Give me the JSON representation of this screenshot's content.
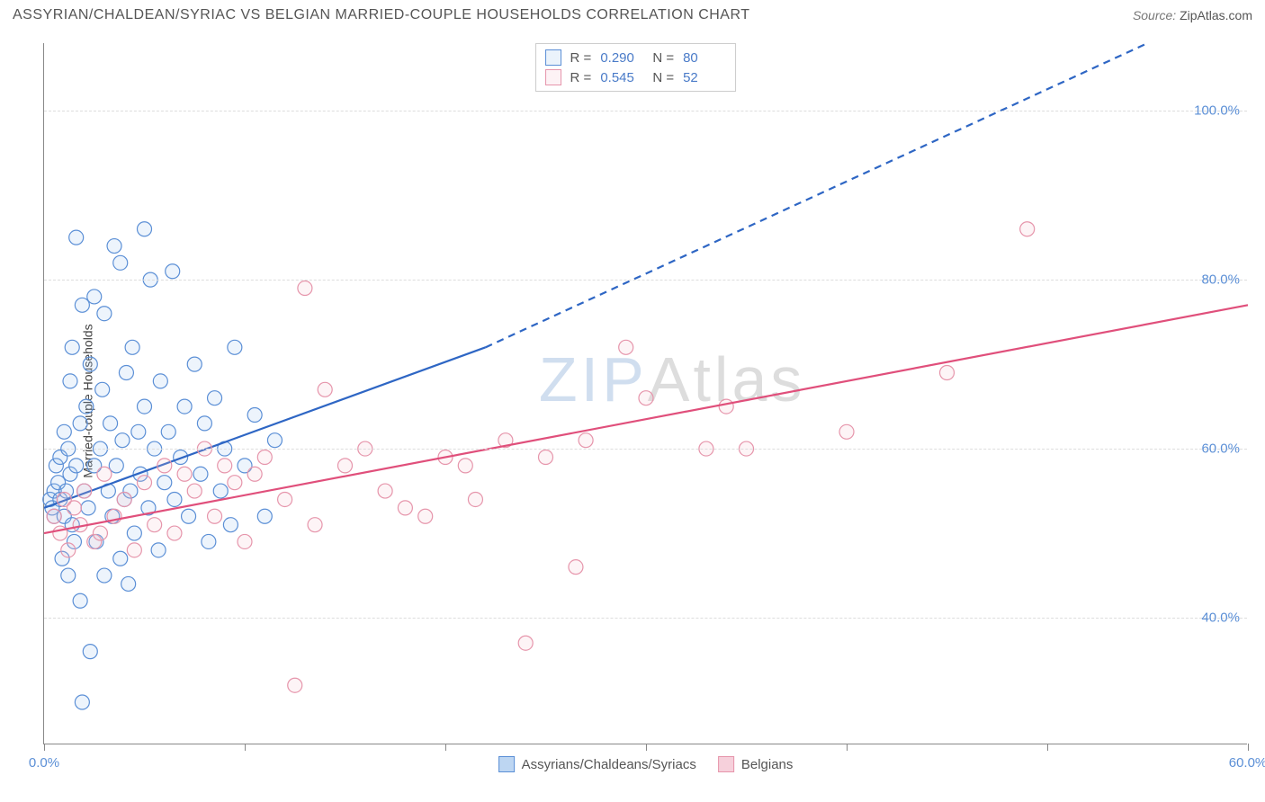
{
  "header": {
    "title": "ASSYRIAN/CHALDEAN/SYRIAC VS BELGIAN MARRIED-COUPLE HOUSEHOLDS CORRELATION CHART",
    "source_label": "Source:",
    "source_value": "ZipAtlas.com"
  },
  "chart": {
    "ylabel": "Married-couple Households",
    "xlim": [
      0,
      60
    ],
    "ylim": [
      25,
      108
    ],
    "xticks": [
      0,
      10,
      20,
      30,
      40,
      50,
      60
    ],
    "xtick_labels": {
      "0": "0.0%",
      "60": "60.0%"
    },
    "yticks": [
      40,
      60,
      80,
      100
    ],
    "ytick_labels": {
      "40": "40.0%",
      "60": "60.0%",
      "80": "80.0%",
      "100": "100.0%"
    },
    "grid_color": "#dddddd",
    "axis_color": "#888888",
    "background_color": "#ffffff",
    "label_color": "#5b8fd6",
    "point_radius": 8,
    "point_stroke_width": 1.2,
    "point_fill_opacity": 0.18,
    "line_width": 2.2,
    "series": [
      {
        "name": "Assyrians/Chaldeans/Syriacs",
        "color_stroke": "#5b8fd6",
        "color_fill": "#9dc1ec",
        "line_color": "#2e66c4",
        "R": "0.290",
        "N": "80",
        "regression": {
          "x1": 0,
          "y1": 53,
          "x2_solid": 22,
          "y2_solid": 72,
          "x2_dash": 55,
          "y2_dash": 108
        },
        "points": [
          [
            0.3,
            54
          ],
          [
            0.4,
            53
          ],
          [
            0.5,
            55
          ],
          [
            0.5,
            52
          ],
          [
            0.6,
            58
          ],
          [
            0.7,
            56
          ],
          [
            0.8,
            54
          ],
          [
            0.8,
            59
          ],
          [
            0.9,
            47
          ],
          [
            1.0,
            52
          ],
          [
            1.0,
            62
          ],
          [
            1.1,
            55
          ],
          [
            1.2,
            60
          ],
          [
            1.2,
            45
          ],
          [
            1.3,
            57
          ],
          [
            1.3,
            68
          ],
          [
            1.4,
            51
          ],
          [
            1.4,
            72
          ],
          [
            1.5,
            49
          ],
          [
            1.6,
            85
          ],
          [
            1.6,
            58
          ],
          [
            1.8,
            63
          ],
          [
            1.8,
            42
          ],
          [
            1.9,
            77
          ],
          [
            1.9,
            30
          ],
          [
            2.0,
            55
          ],
          [
            2.1,
            65
          ],
          [
            2.2,
            53
          ],
          [
            2.3,
            70
          ],
          [
            2.3,
            36
          ],
          [
            2.5,
            58
          ],
          [
            2.6,
            49
          ],
          [
            2.8,
            60
          ],
          [
            2.9,
            67
          ],
          [
            3.0,
            45
          ],
          [
            3.0,
            76
          ],
          [
            3.2,
            55
          ],
          [
            3.3,
            63
          ],
          [
            3.4,
            52
          ],
          [
            3.5,
            84
          ],
          [
            3.6,
            58
          ],
          [
            3.8,
            47
          ],
          [
            3.9,
            61
          ],
          [
            4.0,
            54
          ],
          [
            4.1,
            69
          ],
          [
            4.3,
            55
          ],
          [
            4.4,
            72
          ],
          [
            4.5,
            50
          ],
          [
            4.7,
            62
          ],
          [
            4.8,
            57
          ],
          [
            5.0,
            65
          ],
          [
            5.2,
            53
          ],
          [
            5.3,
            80
          ],
          [
            5.5,
            60
          ],
          [
            5.7,
            48
          ],
          [
            5.8,
            68
          ],
          [
            6.0,
            56
          ],
          [
            6.2,
            62
          ],
          [
            6.4,
            81
          ],
          [
            6.5,
            54
          ],
          [
            6.8,
            59
          ],
          [
            7.0,
            65
          ],
          [
            7.2,
            52
          ],
          [
            7.5,
            70
          ],
          [
            7.8,
            57
          ],
          [
            8.0,
            63
          ],
          [
            8.2,
            49
          ],
          [
            8.5,
            66
          ],
          [
            8.8,
            55
          ],
          [
            9.0,
            60
          ],
          [
            9.3,
            51
          ],
          [
            9.5,
            72
          ],
          [
            10.0,
            58
          ],
          [
            10.5,
            64
          ],
          [
            11.0,
            52
          ],
          [
            11.5,
            61
          ],
          [
            5.0,
            86
          ],
          [
            3.8,
            82
          ],
          [
            2.5,
            78
          ],
          [
            4.2,
            44
          ]
        ]
      },
      {
        "name": "Belgians",
        "color_stroke": "#e695ab",
        "color_fill": "#f4c0cf",
        "line_color": "#e04f7b",
        "R": "0.545",
        "N": "52",
        "regression": {
          "x1": 0,
          "y1": 50,
          "x2_solid": 60,
          "y2_solid": 77,
          "x2_dash": 60,
          "y2_dash": 77
        },
        "points": [
          [
            0.5,
            52
          ],
          [
            0.8,
            50
          ],
          [
            1.0,
            54
          ],
          [
            1.2,
            48
          ],
          [
            1.5,
            53
          ],
          [
            1.8,
            51
          ],
          [
            2.0,
            55
          ],
          [
            2.5,
            49
          ],
          [
            2.8,
            50
          ],
          [
            3.0,
            57
          ],
          [
            3.5,
            52
          ],
          [
            4.0,
            54
          ],
          [
            4.5,
            48
          ],
          [
            5.0,
            56
          ],
          [
            5.5,
            51
          ],
          [
            6.0,
            58
          ],
          [
            6.5,
            50
          ],
          [
            7.0,
            57
          ],
          [
            7.5,
            55
          ],
          [
            8.0,
            60
          ],
          [
            8.5,
            52
          ],
          [
            9.0,
            58
          ],
          [
            9.5,
            56
          ],
          [
            10.0,
            49
          ],
          [
            10.5,
            57
          ],
          [
            11.0,
            59
          ],
          [
            12.0,
            54
          ],
          [
            13.0,
            79
          ],
          [
            13.5,
            51
          ],
          [
            14.0,
            67
          ],
          [
            15.0,
            58
          ],
          [
            16.0,
            60
          ],
          [
            17.0,
            55
          ],
          [
            18.0,
            53
          ],
          [
            19.0,
            52
          ],
          [
            20.0,
            59
          ],
          [
            21.0,
            58
          ],
          [
            21.5,
            54
          ],
          [
            23.0,
            61
          ],
          [
            24.0,
            37
          ],
          [
            25.0,
            59
          ],
          [
            26.5,
            46
          ],
          [
            27.0,
            61
          ],
          [
            29.0,
            72
          ],
          [
            30.0,
            66
          ],
          [
            34.0,
            65
          ],
          [
            35.0,
            60
          ],
          [
            12.5,
            32
          ],
          [
            45.0,
            69
          ],
          [
            49.0,
            86
          ],
          [
            33.0,
            60
          ],
          [
            40.0,
            62
          ]
        ]
      }
    ],
    "legend_bottom": [
      {
        "label": "Assyrians/Chaldeans/Syriacs",
        "swatch_fill": "#bdd6f2",
        "swatch_border": "#5b8fd6"
      },
      {
        "label": "Belgians",
        "swatch_fill": "#f6d0db",
        "swatch_border": "#e695ab"
      }
    ],
    "watermark": {
      "z": "ZIP",
      "rest": "Atlas"
    }
  }
}
